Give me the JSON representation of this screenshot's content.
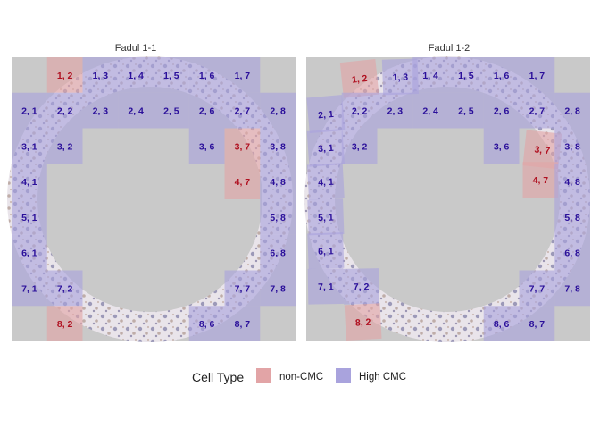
{
  "chart_data": {
    "type": "heatmap",
    "legend": {
      "title": "Cell Type",
      "placement": "bottom",
      "entries": [
        {
          "key": "non",
          "label": "non-CMC",
          "color": "#e2a4a6"
        },
        {
          "key": "high",
          "label": "High CMC",
          "color": "#a9a3dd"
        }
      ]
    },
    "label_colors": {
      "non": "#b01020",
      "high": "#2a0f9a"
    },
    "panels": [
      {
        "title": "Fadul 1-1",
        "cells": [
          {
            "label": "1, 2",
            "row": 1,
            "col": 2,
            "type": "non"
          },
          {
            "label": "1, 3",
            "row": 1,
            "col": 3,
            "type": "high"
          },
          {
            "label": "1, 4",
            "row": 1,
            "col": 4,
            "type": "high"
          },
          {
            "label": "1, 5",
            "row": 1,
            "col": 5,
            "type": "high"
          },
          {
            "label": "1, 6",
            "row": 1,
            "col": 6,
            "type": "high"
          },
          {
            "label": "1, 7",
            "row": 1,
            "col": 7,
            "type": "high"
          },
          {
            "label": "2, 1",
            "row": 2,
            "col": 1,
            "type": "high"
          },
          {
            "label": "2, 2",
            "row": 2,
            "col": 2,
            "type": "high"
          },
          {
            "label": "2, 3",
            "row": 2,
            "col": 3,
            "type": "high"
          },
          {
            "label": "2, 4",
            "row": 2,
            "col": 4,
            "type": "high"
          },
          {
            "label": "2, 5",
            "row": 2,
            "col": 5,
            "type": "high"
          },
          {
            "label": "2, 6",
            "row": 2,
            "col": 6,
            "type": "high"
          },
          {
            "label": "2, 7",
            "row": 2,
            "col": 7,
            "type": "high"
          },
          {
            "label": "2, 8",
            "row": 2,
            "col": 8,
            "type": "high"
          },
          {
            "label": "3, 1",
            "row": 3,
            "col": 1,
            "type": "high"
          },
          {
            "label": "3, 2",
            "row": 3,
            "col": 2,
            "type": "high"
          },
          {
            "label": "3, 6",
            "row": 3,
            "col": 6,
            "type": "high"
          },
          {
            "label": "3, 7",
            "row": 3,
            "col": 7,
            "type": "non"
          },
          {
            "label": "3, 8",
            "row": 3,
            "col": 8,
            "type": "high"
          },
          {
            "label": "4, 1",
            "row": 4,
            "col": 1,
            "type": "high"
          },
          {
            "label": "4, 7",
            "row": 4,
            "col": 7,
            "type": "non"
          },
          {
            "label": "4, 8",
            "row": 4,
            "col": 8,
            "type": "high"
          },
          {
            "label": "5, 1",
            "row": 5,
            "col": 1,
            "type": "high"
          },
          {
            "label": "5, 8",
            "row": 5,
            "col": 8,
            "type": "high"
          },
          {
            "label": "6, 1",
            "row": 6,
            "col": 1,
            "type": "high"
          },
          {
            "label": "6, 8",
            "row": 6,
            "col": 8,
            "type": "high"
          },
          {
            "label": "7, 1",
            "row": 7,
            "col": 1,
            "type": "high"
          },
          {
            "label": "7, 2",
            "row": 7,
            "col": 2,
            "type": "high"
          },
          {
            "label": "7, 7",
            "row": 7,
            "col": 7,
            "type": "high"
          },
          {
            "label": "7, 8",
            "row": 7,
            "col": 8,
            "type": "high"
          },
          {
            "label": "8, 2",
            "row": 8,
            "col": 2,
            "type": "non"
          },
          {
            "label": "8, 6",
            "row": 8,
            "col": 6,
            "type": "high"
          },
          {
            "label": "8, 7",
            "row": 8,
            "col": 7,
            "type": "high"
          }
        ]
      },
      {
        "title": "Fadul 1-2",
        "cells": [
          {
            "label": "1, 2",
            "row": 1,
            "col": 2,
            "type": "non"
          },
          {
            "label": "1, 3",
            "row": 1,
            "col": 3,
            "type": "high"
          },
          {
            "label": "1, 4",
            "row": 1,
            "col": 4,
            "type": "high"
          },
          {
            "label": "1, 5",
            "row": 1,
            "col": 5,
            "type": "high"
          },
          {
            "label": "1, 6",
            "row": 1,
            "col": 6,
            "type": "high"
          },
          {
            "label": "1, 7",
            "row": 1,
            "col": 7,
            "type": "high"
          },
          {
            "label": "2, 1",
            "row": 2,
            "col": 1,
            "type": "high"
          },
          {
            "label": "2, 2",
            "row": 2,
            "col": 2,
            "type": "high"
          },
          {
            "label": "2, 3",
            "row": 2,
            "col": 3,
            "type": "high"
          },
          {
            "label": "2, 4",
            "row": 2,
            "col": 4,
            "type": "high"
          },
          {
            "label": "2, 5",
            "row": 2,
            "col": 5,
            "type": "high"
          },
          {
            "label": "2, 6",
            "row": 2,
            "col": 6,
            "type": "high"
          },
          {
            "label": "2, 7",
            "row": 2,
            "col": 7,
            "type": "high"
          },
          {
            "label": "2, 8",
            "row": 2,
            "col": 8,
            "type": "high"
          },
          {
            "label": "3, 1",
            "row": 3,
            "col": 1,
            "type": "high"
          },
          {
            "label": "3, 2",
            "row": 3,
            "col": 2,
            "type": "high"
          },
          {
            "label": "3, 6",
            "row": 3,
            "col": 6,
            "type": "high"
          },
          {
            "label": "3, 7",
            "row": 3,
            "col": 7,
            "type": "non"
          },
          {
            "label": "3, 8",
            "row": 3,
            "col": 8,
            "type": "high"
          },
          {
            "label": "4, 1",
            "row": 4,
            "col": 1,
            "type": "high"
          },
          {
            "label": "4, 7",
            "row": 4,
            "col": 7,
            "type": "non"
          },
          {
            "label": "4, 8",
            "row": 4,
            "col": 8,
            "type": "high"
          },
          {
            "label": "5, 1",
            "row": 5,
            "col": 1,
            "type": "high"
          },
          {
            "label": "5, 8",
            "row": 5,
            "col": 8,
            "type": "high"
          },
          {
            "label": "6, 1",
            "row": 6,
            "col": 1,
            "type": "high"
          },
          {
            "label": "6, 8",
            "row": 6,
            "col": 8,
            "type": "high"
          },
          {
            "label": "7, 1",
            "row": 7,
            "col": 1,
            "type": "high"
          },
          {
            "label": "7, 2",
            "row": 7,
            "col": 2,
            "type": "high"
          },
          {
            "label": "7, 7",
            "row": 7,
            "col": 7,
            "type": "high"
          },
          {
            "label": "7, 8",
            "row": 7,
            "col": 8,
            "type": "high"
          },
          {
            "label": "8, 2",
            "row": 8,
            "col": 2,
            "type": "non"
          },
          {
            "label": "8, 6",
            "row": 8,
            "col": 6,
            "type": "high"
          },
          {
            "label": "8, 7",
            "row": 8,
            "col": 7,
            "type": "high"
          }
        ]
      }
    ]
  }
}
